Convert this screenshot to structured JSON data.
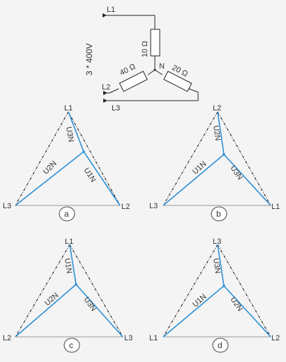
{
  "circuit": {
    "supply": "3 * 400V",
    "lines": [
      "L1",
      "L2",
      "L3"
    ],
    "neutral": "N",
    "resistors": [
      "10 Ω",
      "40 Ω",
      "20 Ω"
    ]
  },
  "diagrams": [
    {
      "option": "a",
      "top": "L1",
      "left": "L3",
      "right": "L2",
      "phasors": [
        "U3N",
        "U2N",
        "U1N"
      ]
    },
    {
      "option": "b",
      "top": "L2",
      "left": "L3",
      "right": "L1",
      "phasors": [
        "U2N",
        "U1N",
        "U3N"
      ]
    },
    {
      "option": "c",
      "top": "L1",
      "left": "L2",
      "right": "L3",
      "phasors": [
        "U1N",
        "U2N",
        "U3N"
      ]
    },
    {
      "option": "d",
      "top": "L3",
      "left": "L1",
      "right": "L2",
      "phasors": [
        "U3N",
        "U1N",
        "U2N"
      ]
    }
  ]
}
